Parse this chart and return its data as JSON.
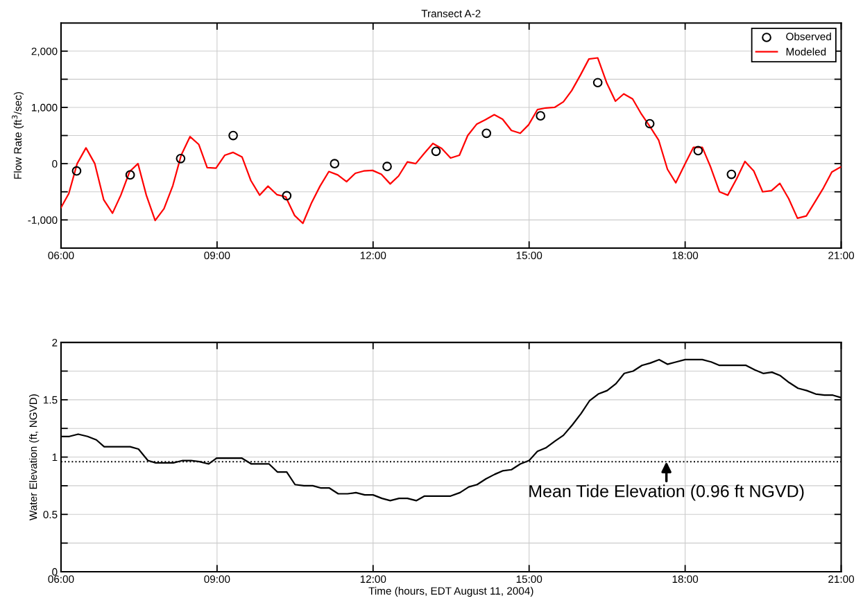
{
  "chart_data": [
    {
      "type": "line",
      "title": "Transect A-2",
      "ylabel": "Flow Rate (ft$^{3}$/sec)",
      "xlim": [
        6,
        21
      ],
      "ylim": [
        -1500,
        2500
      ],
      "xticks": [
        {
          "value": 6,
          "label": "06:00"
        },
        {
          "value": 9,
          "label": "09:00"
        },
        {
          "value": 12,
          "label": "12:00"
        },
        {
          "value": 15,
          "label": "15:00"
        },
        {
          "value": 18,
          "label": "18:00"
        },
        {
          "value": 21,
          "label": "21:00"
        }
      ],
      "yticks": [
        {
          "value": -1000,
          "label": "-1,000"
        },
        {
          "value": -500,
          "label": null
        },
        {
          "value": 0,
          "label": "0"
        },
        {
          "value": 500,
          "label": null
        },
        {
          "value": 1000,
          "label": "1,000"
        },
        {
          "value": 1500,
          "label": null
        },
        {
          "value": 2000,
          "label": "2,000"
        }
      ],
      "grid": true,
      "legend": "top right",
      "series": [
        {
          "name": "Observed",
          "type": "scatter",
          "marker": "circle",
          "color": "#000000",
          "x": [
            6.3,
            7.33,
            8.3,
            9.31,
            10.34,
            11.26,
            12.27,
            13.21,
            14.18,
            15.22,
            16.32,
            17.32,
            18.25,
            18.89
          ],
          "values": [
            -130,
            -200,
            90,
            500,
            -570,
            0,
            -50,
            220,
            540,
            850,
            1440,
            710,
            230,
            -190
          ]
        },
        {
          "name": "Modeled",
          "marker": "none",
          "line_style": "solid",
          "color": "#ff0000",
          "x": [
            6.0,
            6.15,
            6.31,
            6.48,
            6.65,
            6.82,
            6.99,
            7.15,
            7.32,
            7.48,
            7.64,
            7.81,
            7.98,
            8.15,
            8.31,
            8.48,
            8.65,
            8.81,
            8.98,
            9.15,
            9.31,
            9.48,
            9.65,
            9.82,
            9.98,
            10.15,
            10.32,
            10.49,
            10.65,
            10.82,
            10.98,
            11.15,
            11.32,
            11.49,
            11.66,
            11.82,
            11.99,
            12.16,
            12.33,
            12.49,
            12.66,
            12.82,
            12.99,
            13.15,
            13.32,
            13.49,
            13.66,
            13.82,
            13.99,
            14.16,
            14.33,
            14.49,
            14.66,
            14.83,
            14.99,
            15.16,
            15.32,
            15.49,
            15.66,
            15.82,
            15.99,
            16.15,
            16.32,
            16.49,
            16.66,
            16.82,
            16.99,
            17.16,
            17.33,
            17.49,
            17.66,
            17.82,
            17.99,
            18.16,
            18.33,
            18.49,
            18.66,
            18.82,
            18.99,
            19.15,
            19.32,
            19.49,
            19.66,
            19.82,
            19.99,
            20.16,
            20.33,
            20.49,
            20.66,
            20.82,
            20.99
          ],
          "values": [
            -780,
            -530,
            0,
            280,
            0,
            -640,
            -880,
            -560,
            -140,
            0,
            -560,
            -1010,
            -800,
            -390,
            150,
            480,
            340,
            -70,
            -80,
            150,
            200,
            120,
            -300,
            -560,
            -400,
            -550,
            -590,
            -920,
            -1060,
            -690,
            -400,
            -140,
            -200,
            -320,
            -170,
            -130,
            -120,
            -190,
            -360,
            -220,
            30,
            0,
            190,
            360,
            270,
            100,
            150,
            500,
            700,
            780,
            870,
            790,
            590,
            540,
            690,
            960,
            990,
            1000,
            1100,
            1300,
            1580,
            1860,
            1880,
            1440,
            1110,
            1240,
            1150,
            880,
            650,
            420,
            -100,
            -340,
            -20,
            290,
            290,
            -60,
            -500,
            -560,
            -270,
            40,
            -130,
            -500,
            -480,
            -350,
            -620,
            -970,
            -930,
            -690,
            -430,
            -150,
            -60
          ]
        }
      ]
    },
    {
      "type": "line",
      "xlabel": "Time (hours, EDT August 11, 2004)",
      "ylabel": "Water Elevation (ft, NGVD)",
      "xlim": [
        6,
        21
      ],
      "ylim": [
        0,
        2
      ],
      "xticks": [
        {
          "value": 6,
          "label": "06:00"
        },
        {
          "value": 9,
          "label": "09:00"
        },
        {
          "value": 12,
          "label": "12:00"
        },
        {
          "value": 15,
          "label": "15:00"
        },
        {
          "value": 18,
          "label": "18:00"
        },
        {
          "value": 21,
          "label": "21:00"
        }
      ],
      "yticks": [
        0,
        {
          "value": 0.25,
          "label": null
        },
        0.5,
        {
          "value": 0.75,
          "label": null
        },
        1,
        {
          "value": 1.25,
          "label": null
        },
        1.5,
        {
          "value": 1.75,
          "label": null
        },
        2
      ],
      "grid": true,
      "ref_lines": [
        {
          "axis": "y",
          "value": 0.96,
          "color": "#000000",
          "line_style": "dotted"
        }
      ],
      "annotations": [
        {
          "text": "Mean Tide Elevation (0.96 ft NGVD)",
          "x": 17.64,
          "y": 0.96
        }
      ],
      "series": [
        {
          "marker": "none",
          "line_style": "solid",
          "color": "#000000",
          "x": [
            6.0,
            6.16,
            6.33,
            6.51,
            6.68,
            6.83,
            7.0,
            7.33,
            7.49,
            7.67,
            7.82,
            8.16,
            8.34,
            8.5,
            8.66,
            8.84,
            8.99,
            9.48,
            9.66,
            10.0,
            10.16,
            10.34,
            10.5,
            10.67,
            10.84,
            11.0,
            11.16,
            11.33,
            11.51,
            11.67,
            11.84,
            12.0,
            12.17,
            12.33,
            12.5,
            12.66,
            12.83,
            12.99,
            13.49,
            13.67,
            13.84,
            14.0,
            14.17,
            14.34,
            14.49,
            14.66,
            14.83,
            15.0,
            15.16,
            15.32,
            15.5,
            15.66,
            15.83,
            16.0,
            16.16,
            16.33,
            16.5,
            16.67,
            16.83,
            17.0,
            17.17,
            17.33,
            17.5,
            17.66,
            17.83,
            18.0,
            18.33,
            18.5,
            18.66,
            19.17,
            19.34,
            19.5,
            19.67,
            19.83,
            20.0,
            20.17,
            20.34,
            20.51,
            20.68,
            20.84,
            20.99
          ],
          "values": [
            1.18,
            1.18,
            1.2,
            1.18,
            1.15,
            1.09,
            1.09,
            1.09,
            1.07,
            0.97,
            0.95,
            0.95,
            0.97,
            0.97,
            0.96,
            0.94,
            0.99,
            0.99,
            0.94,
            0.94,
            0.87,
            0.87,
            0.76,
            0.75,
            0.75,
            0.73,
            0.73,
            0.68,
            0.68,
            0.69,
            0.67,
            0.67,
            0.64,
            0.62,
            0.64,
            0.64,
            0.62,
            0.66,
            0.66,
            0.69,
            0.74,
            0.76,
            0.81,
            0.85,
            0.88,
            0.89,
            0.94,
            0.97,
            1.05,
            1.08,
            1.14,
            1.19,
            1.28,
            1.38,
            1.49,
            1.55,
            1.58,
            1.64,
            1.73,
            1.75,
            1.8,
            1.82,
            1.85,
            1.81,
            1.83,
            1.85,
            1.85,
            1.83,
            1.8,
            1.8,
            1.76,
            1.73,
            1.74,
            1.71,
            1.65,
            1.6,
            1.58,
            1.55,
            1.54,
            1.54,
            1.52
          ]
        }
      ]
    }
  ]
}
